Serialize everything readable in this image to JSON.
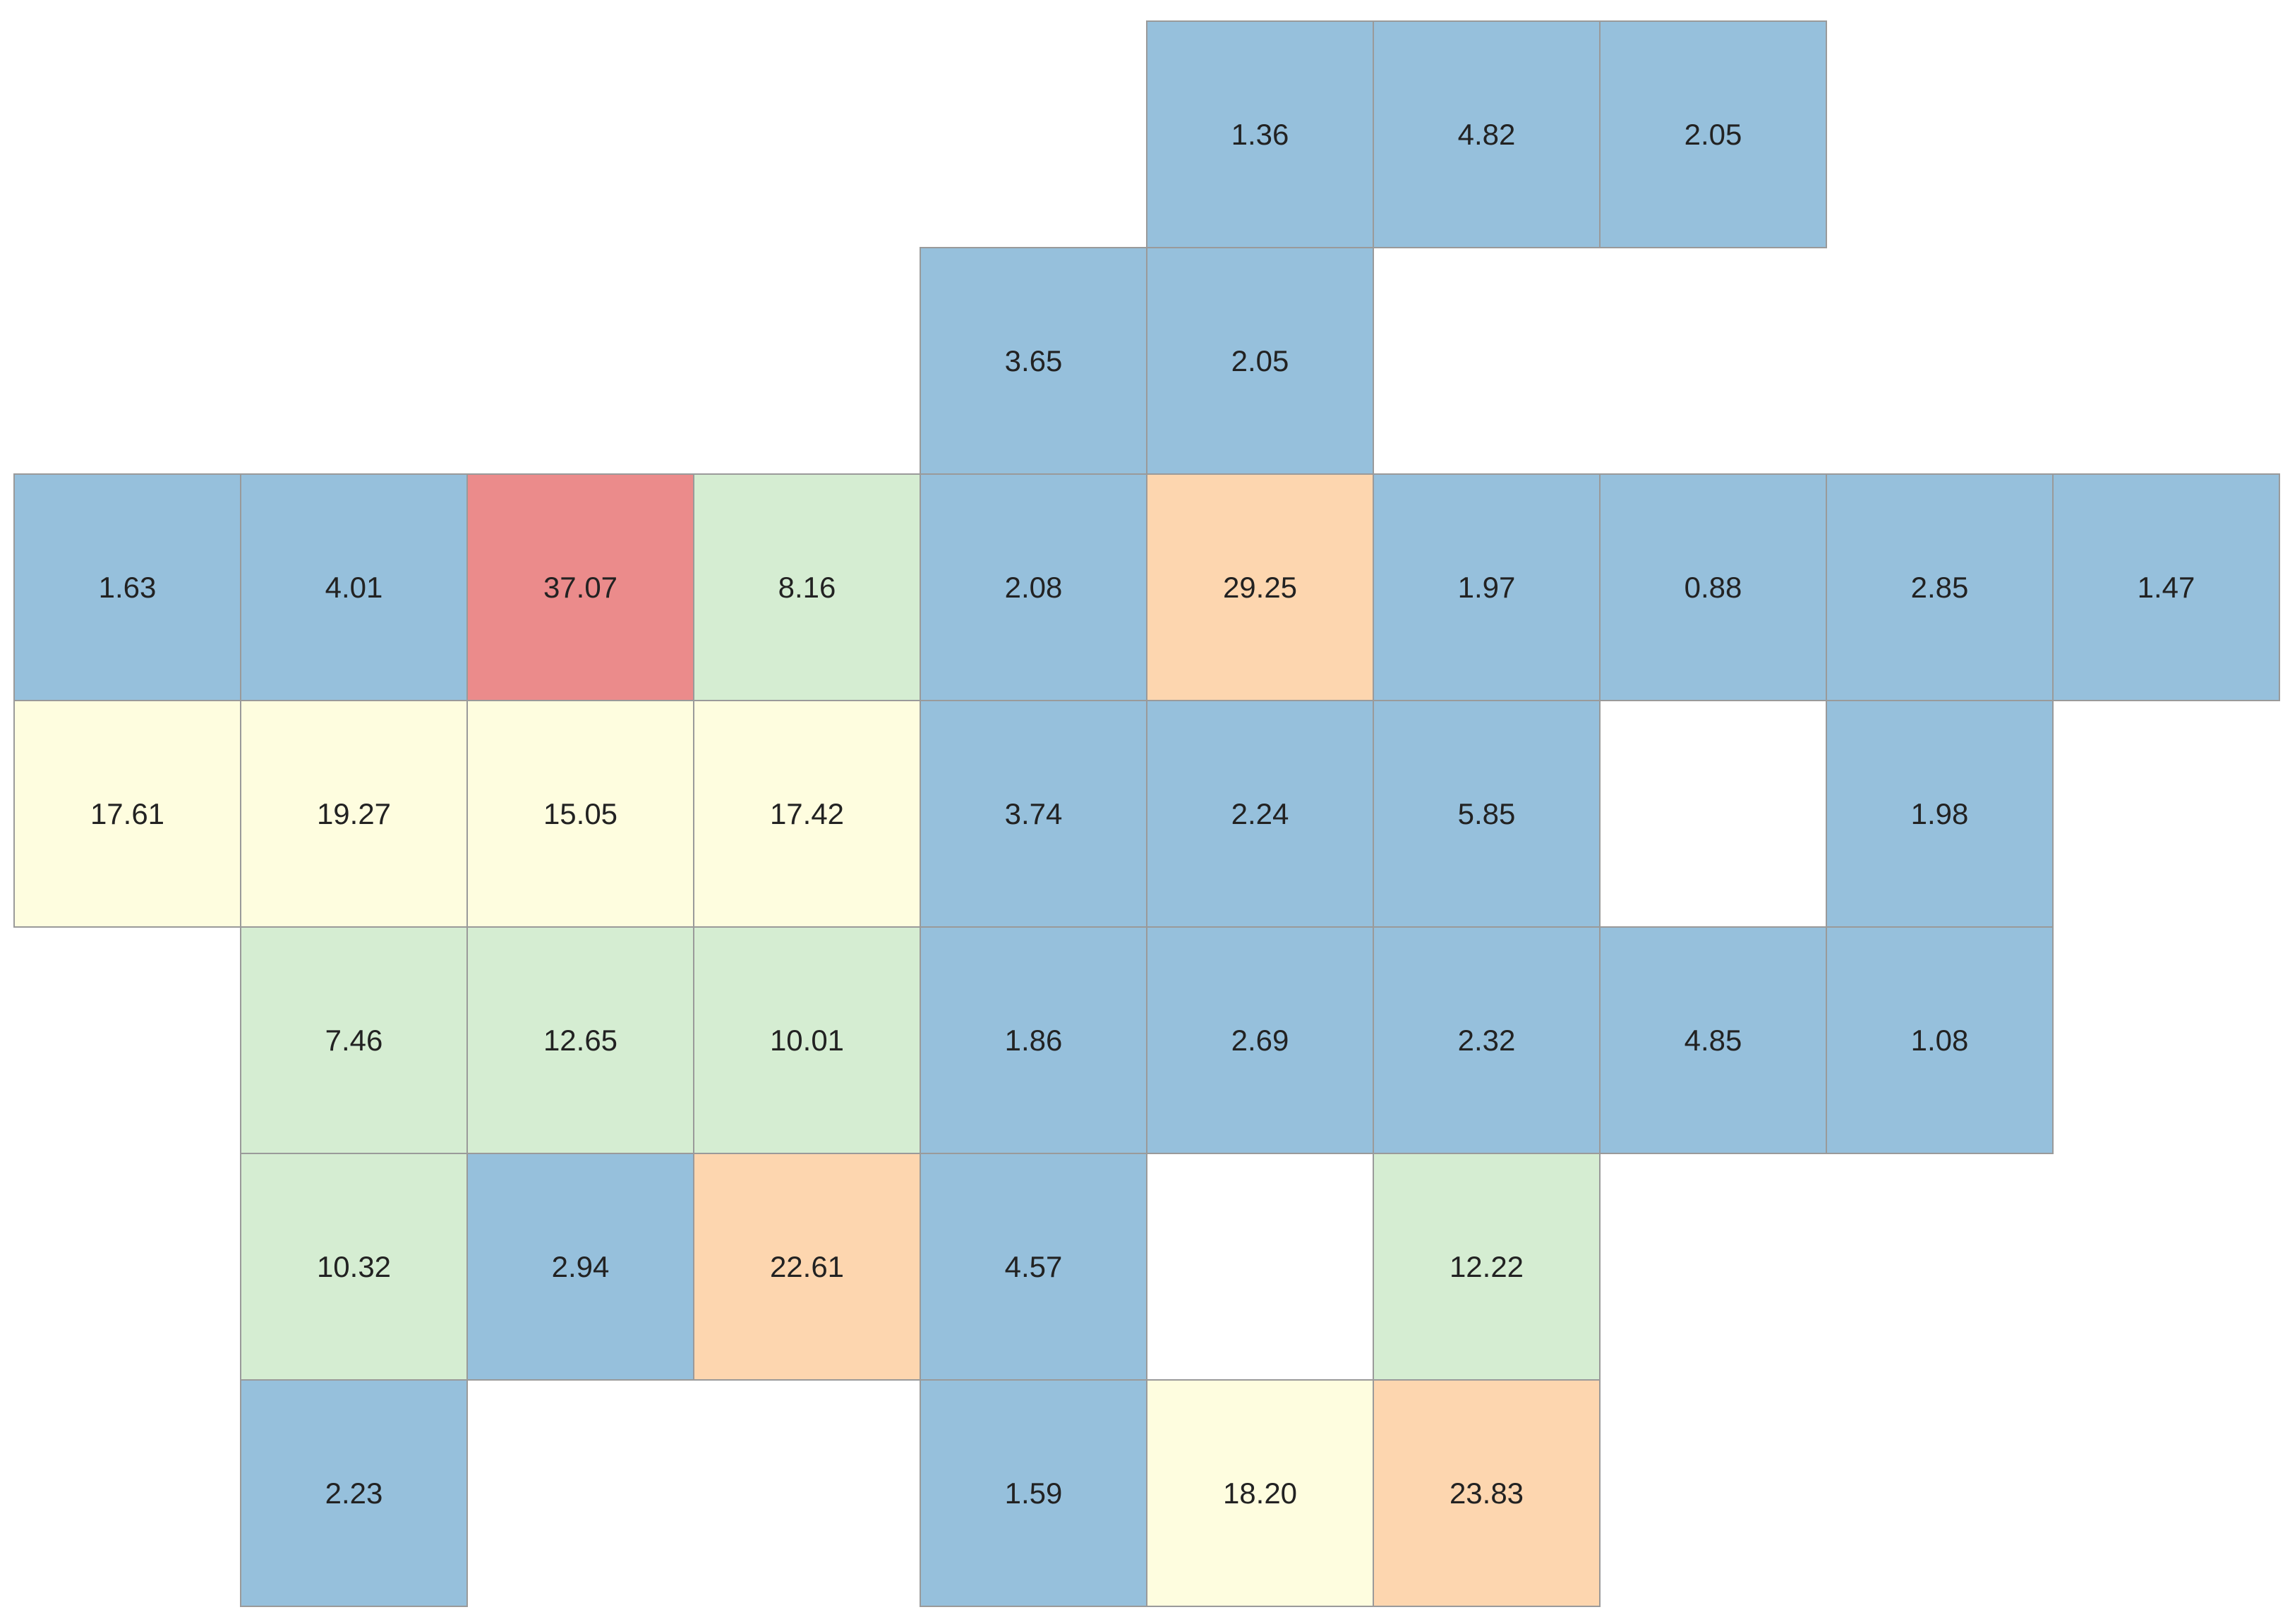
{
  "colors": {
    "blue": "#96c0dc",
    "green": "#d5edd2",
    "yellow": "#fefddf",
    "orange": "#fdd6af",
    "red": "#eb8b8b",
    "border": "#9a9a9a"
  },
  "chart_data": {
    "type": "heatmap",
    "title": "",
    "grid_columns": 10,
    "grid_rows": 7,
    "cells": [
      {
        "row": 0,
        "col": 5,
        "value": 1.36,
        "label": "1.36",
        "color": "blue"
      },
      {
        "row": 0,
        "col": 6,
        "value": 4.82,
        "label": "4.82",
        "color": "blue"
      },
      {
        "row": 0,
        "col": 7,
        "value": 2.05,
        "label": "2.05",
        "color": "blue"
      },
      {
        "row": 1,
        "col": 4,
        "value": 3.65,
        "label": "3.65",
        "color": "blue"
      },
      {
        "row": 1,
        "col": 5,
        "value": 2.05,
        "label": "2.05",
        "color": "blue"
      },
      {
        "row": 2,
        "col": 0,
        "value": 1.63,
        "label": "1.63",
        "color": "blue"
      },
      {
        "row": 2,
        "col": 1,
        "value": 4.01,
        "label": "4.01",
        "color": "blue"
      },
      {
        "row": 2,
        "col": 2,
        "value": 37.07,
        "label": "37.07",
        "color": "red"
      },
      {
        "row": 2,
        "col": 3,
        "value": 8.16,
        "label": "8.16",
        "color": "green"
      },
      {
        "row": 2,
        "col": 4,
        "value": 2.08,
        "label": "2.08",
        "color": "blue"
      },
      {
        "row": 2,
        "col": 5,
        "value": 29.25,
        "label": "29.25",
        "color": "orange"
      },
      {
        "row": 2,
        "col": 6,
        "value": 1.97,
        "label": "1.97",
        "color": "blue"
      },
      {
        "row": 2,
        "col": 7,
        "value": 0.88,
        "label": "0.88",
        "color": "blue"
      },
      {
        "row": 2,
        "col": 8,
        "value": 2.85,
        "label": "2.85",
        "color": "blue"
      },
      {
        "row": 2,
        "col": 9,
        "value": 1.47,
        "label": "1.47",
        "color": "blue"
      },
      {
        "row": 3,
        "col": 0,
        "value": 17.61,
        "label": "17.61",
        "color": "yellow"
      },
      {
        "row": 3,
        "col": 1,
        "value": 19.27,
        "label": "19.27",
        "color": "yellow"
      },
      {
        "row": 3,
        "col": 2,
        "value": 15.05,
        "label": "15.05",
        "color": "yellow"
      },
      {
        "row": 3,
        "col": 3,
        "value": 17.42,
        "label": "17.42",
        "color": "yellow"
      },
      {
        "row": 3,
        "col": 4,
        "value": 3.74,
        "label": "3.74",
        "color": "blue"
      },
      {
        "row": 3,
        "col": 5,
        "value": 2.24,
        "label": "2.24",
        "color": "blue"
      },
      {
        "row": 3,
        "col": 6,
        "value": 5.85,
        "label": "5.85",
        "color": "blue"
      },
      {
        "row": 3,
        "col": 8,
        "value": 1.98,
        "label": "1.98",
        "color": "blue"
      },
      {
        "row": 4,
        "col": 1,
        "value": 7.46,
        "label": "7.46",
        "color": "green"
      },
      {
        "row": 4,
        "col": 2,
        "value": 12.65,
        "label": "12.65",
        "color": "green"
      },
      {
        "row": 4,
        "col": 3,
        "value": 10.01,
        "label": "10.01",
        "color": "green"
      },
      {
        "row": 4,
        "col": 4,
        "value": 1.86,
        "label": "1.86",
        "color": "blue"
      },
      {
        "row": 4,
        "col": 5,
        "value": 2.69,
        "label": "2.69",
        "color": "blue"
      },
      {
        "row": 4,
        "col": 6,
        "value": 2.32,
        "label": "2.32",
        "color": "blue"
      },
      {
        "row": 4,
        "col": 7,
        "value": 4.85,
        "label": "4.85",
        "color": "blue"
      },
      {
        "row": 4,
        "col": 8,
        "value": 1.08,
        "label": "1.08",
        "color": "blue"
      },
      {
        "row": 5,
        "col": 1,
        "value": 10.32,
        "label": "10.32",
        "color": "green"
      },
      {
        "row": 5,
        "col": 2,
        "value": 2.94,
        "label": "2.94",
        "color": "blue"
      },
      {
        "row": 5,
        "col": 3,
        "value": 22.61,
        "label": "22.61",
        "color": "orange"
      },
      {
        "row": 5,
        "col": 4,
        "value": 4.57,
        "label": "4.57",
        "color": "blue"
      },
      {
        "row": 5,
        "col": 6,
        "value": 12.22,
        "label": "12.22",
        "color": "green"
      },
      {
        "row": 6,
        "col": 1,
        "value": 2.23,
        "label": "2.23",
        "color": "blue"
      },
      {
        "row": 6,
        "col": 4,
        "value": 1.59,
        "label": "1.59",
        "color": "blue"
      },
      {
        "row": 6,
        "col": 5,
        "value": 18.2,
        "label": "18.20",
        "color": "yellow"
      },
      {
        "row": 6,
        "col": 6,
        "value": 23.83,
        "label": "23.83",
        "color": "orange"
      }
    ]
  }
}
